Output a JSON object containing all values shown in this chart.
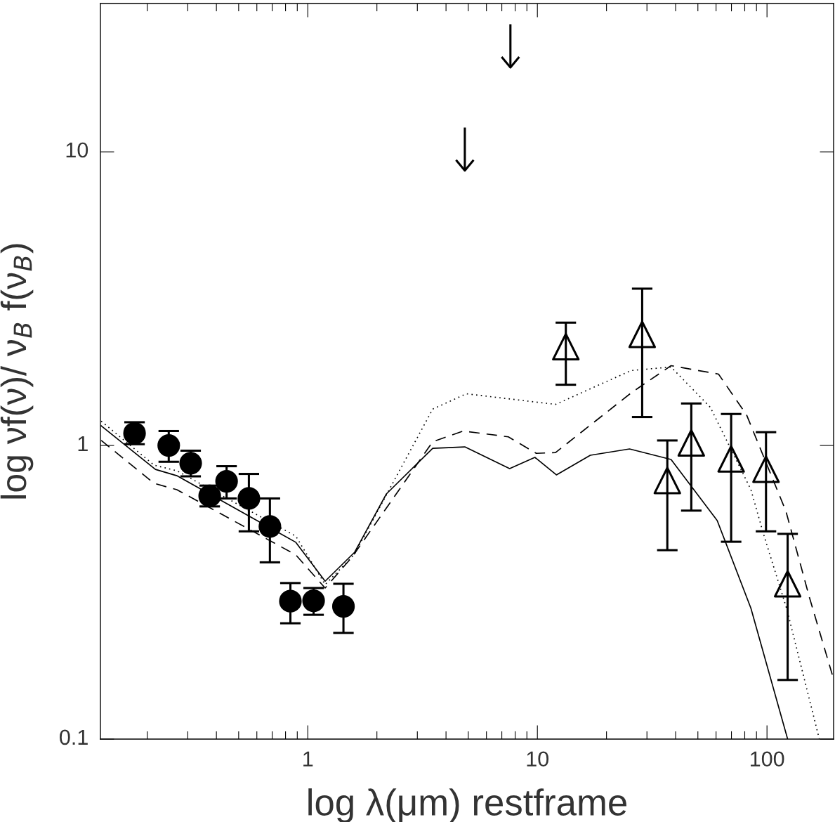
{
  "chart_data": {
    "type": "scatter",
    "xlabel": "log λ(μm) restframe",
    "ylabel": "log νf(ν)/ ν$_{B}$ f(ν$_{B}$)",
    "log": "xy",
    "xlim": [
      0.125,
      195
    ],
    "ylim": [
      0.1,
      32
    ],
    "xticks": [
      1,
      10,
      100
    ],
    "yticks": [
      0.1,
      1,
      10
    ],
    "grid": false,
    "series": [
      {
        "type": "line",
        "line_style": "solid",
        "marker": "none",
        "color": "#000000",
        "x": [
          0.126,
          0.217,
          0.269,
          0.887,
          1.19,
          1.6,
          2.2,
          3.5,
          4.83,
          7.57,
          9.75,
          12.1,
          17.0,
          25.2,
          38.2,
          60.7,
          85.1,
          123
        ],
        "values": [
          1.167,
          0.829,
          0.789,
          0.468,
          0.345,
          0.433,
          0.684,
          0.978,
          0.989,
          0.834,
          0.911,
          0.794,
          0.926,
          0.973,
          0.896,
          0.555,
          0.279,
          0.1
        ]
      },
      {
        "type": "line",
        "line_style": "dotted",
        "marker": "none",
        "color": "#000000",
        "x": [
          0.126,
          0.214,
          0.269,
          0.887,
          1.19,
          1.59,
          3.5,
          4.9,
          12.0,
          25.6,
          38.2,
          56.6,
          85.1,
          96.5,
          122,
          169
        ],
        "values": [
          1.21,
          0.857,
          0.82,
          0.491,
          0.336,
          0.424,
          1.33,
          1.5,
          1.38,
          1.8,
          1.85,
          1.35,
          0.707,
          0.5,
          0.277,
          0.1
        ]
      },
      {
        "type": "line",
        "line_style": "dashed",
        "marker": "none",
        "color": "#000000",
        "x": [
          0.126,
          0.214,
          0.269,
          0.887,
          1.19,
          1.56,
          3.5,
          4.76,
          7.47,
          9.89,
          12.0,
          25.6,
          38.2,
          61.5,
          81.5,
          121,
          153,
          195
        ],
        "values": [
          1.04,
          0.743,
          0.707,
          0.424,
          0.327,
          0.417,
          1.03,
          1.12,
          1.07,
          0.94,
          0.946,
          1.51,
          1.87,
          1.75,
          1.27,
          0.596,
          0.304,
          0.16
        ]
      },
      {
        "marker": "circle",
        "color": "#000000",
        "x": [
          0.176,
          0.248,
          0.309,
          0.374,
          0.443,
          0.554,
          0.684,
          0.84,
          1.06,
          1.43
        ],
        "values": [
          1.1,
          1.0,
          0.87,
          0.673,
          0.755,
          0.66,
          0.53,
          0.295,
          0.296,
          0.283
        ],
        "errors": [
          [
            1.01,
            1.2
          ],
          [
            0.88,
            1.12
          ],
          [
            0.785,
            0.96
          ],
          [
            0.62,
            0.73
          ],
          [
            0.66,
            0.85
          ],
          [
            0.51,
            0.8
          ],
          [
            0.4,
            0.66
          ],
          [
            0.248,
            0.34
          ],
          [
            0.265,
            0.327
          ],
          [
            0.23,
            0.338
          ]
        ]
      },
      {
        "marker": "triangle",
        "color": "#000000",
        "x": [
          13.3,
          28.6,
          36.8,
          46.8,
          69.8,
          99,
          123
        ],
        "values": [
          2.17,
          2.39,
          0.76,
          1.02,
          0.9,
          0.83,
          0.338
        ],
        "errors": [
          [
            1.61,
            2.62
          ],
          [
            1.25,
            3.42
          ],
          [
            0.44,
            1.04
          ],
          [
            0.6,
            1.39
          ],
          [
            0.47,
            1.28
          ],
          [
            0.51,
            1.11
          ],
          [
            0.159,
            0.5
          ]
        ]
      },
      {
        "color": "#000000",
        "x": [
          4.83,
          7.63
        ],
        "values": [
          9.0,
          20.2
        ],
        "errors": [
          [
            8.67,
            12.1
          ],
          [
            19.5,
            27.2
          ]
        ]
      }
    ]
  }
}
